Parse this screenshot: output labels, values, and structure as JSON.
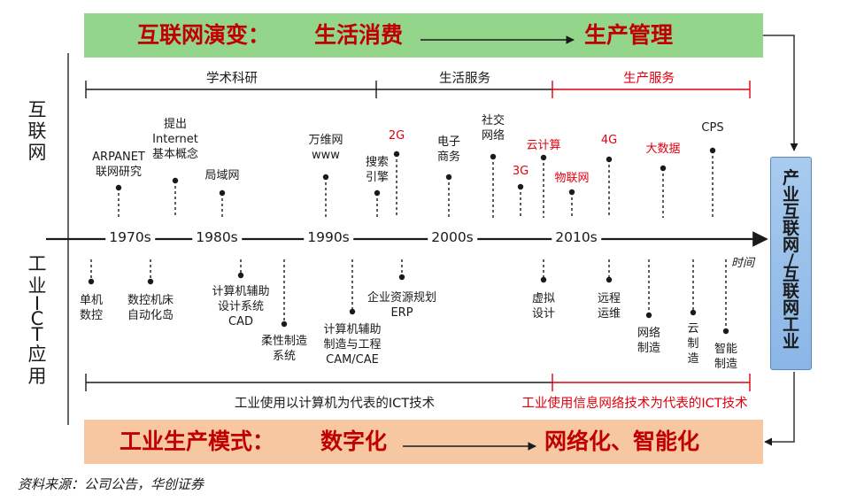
{
  "top_banner": {
    "prefix": "互联网演变：",
    "from": "生活消费",
    "to": "生产管理"
  },
  "bottom_banner": {
    "prefix": "工业生产模式：",
    "from": "数字化",
    "to": "网络化、智能化"
  },
  "left_labels": {
    "internet": [
      "互",
      "联",
      "网"
    ],
    "ict": [
      "工",
      "业",
      "I",
      "C",
      "T",
      "应",
      "用"
    ]
  },
  "top_segments": [
    "学术科研",
    "生活服务",
    "生产服务"
  ],
  "bottom_segments": [
    "工业使用以计算机为代表的ICT技术",
    "工业使用信息网络技术为代表的ICT技术"
  ],
  "decades": [
    "1970s",
    "1980s",
    "1990s",
    "2000s",
    "2010s"
  ],
  "time_axis_label": "时间",
  "internet_events": [
    {
      "lines": [
        "ARPANET",
        "联网研究"
      ],
      "red": false
    },
    {
      "lines": [
        "提出",
        "Internet",
        "基本概念"
      ],
      "red": false
    },
    {
      "lines": [
        "局域网"
      ],
      "red": false
    },
    {
      "lines": [
        "万维网",
        "www"
      ],
      "red": false
    },
    {
      "lines": [
        "搜索",
        "引擎"
      ],
      "red": false
    },
    {
      "lines": [
        "2G"
      ],
      "red": true
    },
    {
      "lines": [
        "电子",
        "商务"
      ],
      "red": false
    },
    {
      "lines": [
        "社交",
        "网络"
      ],
      "red": false
    },
    {
      "lines": [
        "3G"
      ],
      "red": true
    },
    {
      "lines": [
        "云计算"
      ],
      "red": true
    },
    {
      "lines": [
        "物联网"
      ],
      "red": true
    },
    {
      "lines": [
        "4G"
      ],
      "red": true
    },
    {
      "lines": [
        "大数据"
      ],
      "red": true
    },
    {
      "lines": [
        "CPS"
      ],
      "red": false
    }
  ],
  "ict_events": [
    {
      "lines": [
        "单机",
        "数控"
      ]
    },
    {
      "lines": [
        "数控机床",
        "自动化岛"
      ]
    },
    {
      "lines": [
        "计算机辅助",
        "设计系统",
        "CAD"
      ]
    },
    {
      "lines": [
        "柔性制造",
        "系统"
      ]
    },
    {
      "lines": [
        "计算机辅助",
        "制造与工程",
        "CAM/CAE"
      ]
    },
    {
      "lines": [
        "企业资源规划",
        "ERP"
      ]
    },
    {
      "lines": [
        "虚拟",
        "设计"
      ]
    },
    {
      "lines": [
        "远程",
        "运维"
      ]
    },
    {
      "lines": [
        "网络",
        "制造"
      ]
    },
    {
      "lines": [
        "云",
        "制",
        "造"
      ]
    },
    {
      "lines": [
        "智能",
        "制造"
      ]
    }
  ],
  "result_box": [
    "产",
    "业",
    "互",
    "联",
    "网",
    "/",
    "互",
    "联",
    "网",
    "工",
    "业"
  ],
  "source": "资料来源：公司公告，华创证券",
  "colors": {
    "green_banner": "#92d58b",
    "orange_banner": "#f7c7a1",
    "red": "#e0000f",
    "dark_red": "#c00000",
    "blue_box": "#8ab6e6"
  }
}
